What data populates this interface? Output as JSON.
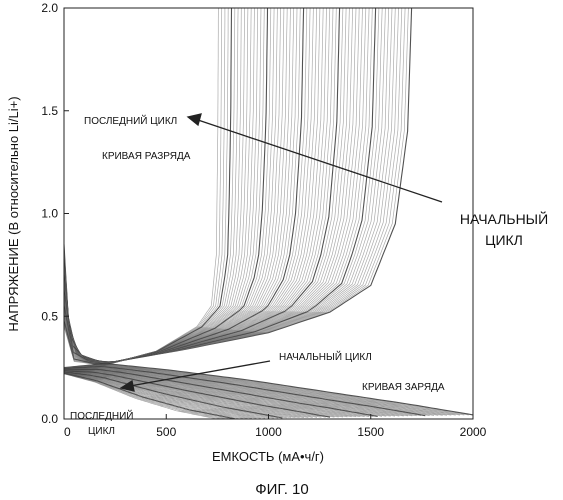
{
  "figure_caption": "ФИГ. 10",
  "chart_data": {
    "type": "line",
    "xlabel": "ЕМКОСТЬ (мА•ч/г)",
    "ylabel": "НАПРЯЖЕНИЕ (В относительно Li/Li+)",
    "xlim": [
      0,
      2000
    ],
    "ylim": [
      0,
      2.0
    ],
    "xticks": [
      "0",
      "500",
      "1000",
      "1500",
      "2000"
    ],
    "yticks": [
      "0.0",
      "0.5",
      "1.0",
      "1.5",
      "2.0"
    ],
    "grid": false,
    "annotations": {
      "discharge_last": "ПОСЛЕДНИЙ ЦИКЛ",
      "discharge_curve": "КРИВАЯ РАЗРЯДА",
      "first_cycle_big_line1": "НАЧАЛЬНЫЙ",
      "first_cycle_big_line2": "ЦИКЛ",
      "charge_first": "НАЧАЛЬНЫЙ ЦИКЛ",
      "charge_curve": "КРИВАЯ ЗАРЯДА",
      "charge_last_line1": "ПОСЛЕДНИЙ",
      "charge_last_line2": "ЦИКЛ"
    },
    "families": {
      "discharge": {
        "cycles_approx": 60,
        "first_cycle_end_capacity": 1700,
        "last_cycle_end_capacity": 750,
        "points_first": [
          [
            0,
            0.85
          ],
          [
            20,
            0.5
          ],
          [
            60,
            0.32
          ],
          [
            200,
            0.27
          ],
          [
            600,
            0.34
          ],
          [
            1000,
            0.42
          ],
          [
            1300,
            0.52
          ],
          [
            1500,
            0.65
          ],
          [
            1620,
            0.95
          ],
          [
            1680,
            1.4
          ],
          [
            1700,
            2.0
          ]
        ],
        "points_last": [
          [
            0,
            0.45
          ],
          [
            50,
            0.28
          ],
          [
            200,
            0.26
          ],
          [
            450,
            0.33
          ],
          [
            650,
            0.45
          ],
          [
            720,
            0.55
          ],
          [
            745,
            0.8
          ],
          [
            752,
            1.4
          ],
          [
            755,
            2.0
          ]
        ]
      },
      "charge": {
        "cycles_approx": 60,
        "first_cycle_end_capacity": 2000,
        "last_cycle_end_capacity": 750,
        "points_first": [
          [
            0,
            0.25
          ],
          [
            200,
            0.27
          ],
          [
            500,
            0.24
          ],
          [
            900,
            0.19
          ],
          [
            1300,
            0.13
          ],
          [
            1700,
            0.07
          ],
          [
            2000,
            0.02
          ]
        ],
        "points_last": [
          [
            0,
            0.22
          ],
          [
            150,
            0.18
          ],
          [
            350,
            0.1
          ],
          [
            550,
            0.04
          ],
          [
            750,
            0.0
          ]
        ]
      }
    }
  }
}
